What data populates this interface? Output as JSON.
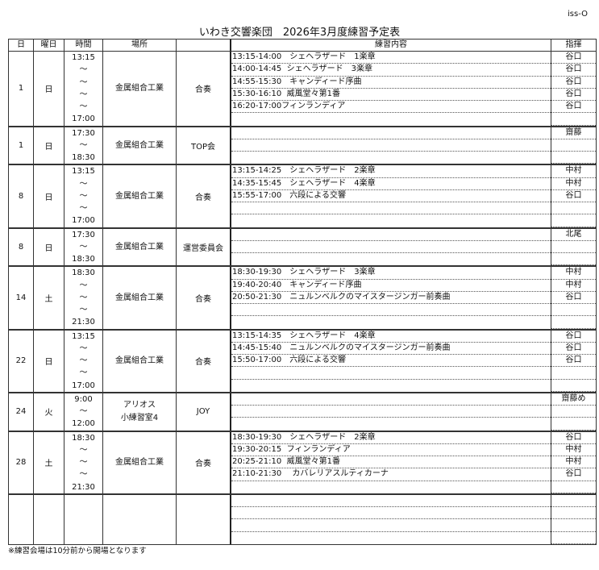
{
  "code": "iss-O",
  "title": "いわき交響楽団　2026年3月度練習予定表",
  "headers": [
    "日",
    "曜日",
    "時間",
    "場所",
    "",
    "練習内容",
    "指揮"
  ],
  "blocks": [
    {
      "day": "1",
      "weekday": "日",
      "times": [
        "13:15",
        "～",
        "～",
        "～",
        "～",
        "17:00"
      ],
      "place": [
        "金属組合工業"
      ],
      "type": "合奏",
      "rows": [
        {
          "text": "13:15-14:00　シェヘラザード　1楽章",
          "cond": "谷口"
        },
        {
          "text": "14:00-14:45  シェヘラザード　3楽章",
          "cond": "谷口"
        },
        {
          "text": "14:55-15:30　キャンディード序曲",
          "cond": "谷口"
        },
        {
          "text": "15:30-16:10  威風堂々第1番",
          "cond": "谷口"
        },
        {
          "text": "16:20-17:00フィンランディア",
          "cond": "谷口"
        },
        {
          "text": "",
          "cond": ""
        }
      ]
    },
    {
      "day": "1",
      "weekday": "日",
      "times": [
        "17:30",
        "～",
        "18:30"
      ],
      "place": [
        "金属組合工業"
      ],
      "type": "TOP会",
      "rows": [
        {
          "text": "",
          "cond": "齋藤"
        },
        {
          "text": "",
          "cond": ""
        },
        {
          "text": "",
          "cond": ""
        }
      ]
    },
    {
      "day": "8",
      "weekday": "日",
      "times": [
        "13:15",
        "～",
        "～",
        "～",
        "17:00"
      ],
      "place": [
        "金属組合工業"
      ],
      "type": "合奏",
      "rows": [
        {
          "text": "13:15-14:25　シェヘラザード　2楽章",
          "cond": "中村"
        },
        {
          "text": "14:35-15:45　シェヘラザード　4楽章",
          "cond": "中村"
        },
        {
          "text": "15:55-17:00　六段による交響",
          "cond": "谷口"
        },
        {
          "text": "",
          "cond": ""
        },
        {
          "text": "",
          "cond": ""
        }
      ]
    },
    {
      "day": "8",
      "weekday": "日",
      "times": [
        "17:30",
        "～",
        "18:30"
      ],
      "place": [
        "金属組合工業"
      ],
      "type": "運営委員会",
      "rows": [
        {
          "text": "",
          "cond": "北尾"
        },
        {
          "text": "",
          "cond": ""
        },
        {
          "text": "",
          "cond": ""
        }
      ]
    },
    {
      "day": "14",
      "weekday": "土",
      "times": [
        "18:30",
        "～",
        "～",
        "～",
        "21:30"
      ],
      "place": [
        "金属組合工業"
      ],
      "type": "合奏",
      "rows": [
        {
          "text": "18:30-19:30　シェヘラザード　3楽章",
          "cond": "中村"
        },
        {
          "text": "19:40-20:40　キャンディード序曲",
          "cond": "中村"
        },
        {
          "text": "20:50-21:30　ニュルンベルクのマイスタージンガー前奏曲",
          "cond": "谷口"
        },
        {
          "text": "",
          "cond": ""
        },
        {
          "text": "",
          "cond": ""
        }
      ]
    },
    {
      "day": "22",
      "weekday": "日",
      "times": [
        "13:15",
        "～",
        "～",
        "～",
        "17:00"
      ],
      "place": [
        "金属組合工業"
      ],
      "type": "合奏",
      "rows": [
        {
          "text": "13:15-14:35　シェヘラザード　4楽章",
          "cond": "谷口"
        },
        {
          "text": "14:45-15:40　ニュルンベルクのマイスタージンガー前奏曲",
          "cond": "谷口"
        },
        {
          "text": "15:50-17:00　六段による交響",
          "cond": "谷口"
        },
        {
          "text": "",
          "cond": ""
        },
        {
          "text": "",
          "cond": ""
        }
      ]
    },
    {
      "day": "24",
      "weekday": "火",
      "times": [
        "9:00",
        "～",
        "12:00"
      ],
      "place": [
        "アリオス",
        "小練習室4"
      ],
      "type": "JOY",
      "rows": [
        {
          "text": "",
          "cond": "齋藤め"
        },
        {
          "text": "",
          "cond": ""
        },
        {
          "text": "",
          "cond": ""
        }
      ]
    },
    {
      "day": "28",
      "weekday": "土",
      "times": [
        "18:30",
        "～",
        "～",
        "～",
        "21:30"
      ],
      "place": [
        "金属組合工業"
      ],
      "type": "合奏",
      "rows": [
        {
          "text": "18:30-19:30　シェヘラザード　2楽章",
          "cond": "谷口"
        },
        {
          "text": "19:30-20:15  フィンランディア",
          "cond": "中村"
        },
        {
          "text": "20:25-21:10  威風堂々第1番",
          "cond": "中村"
        },
        {
          "text": "21:10-21:30　 カバレリアスルティカーナ",
          "cond": "谷口"
        },
        {
          "text": "",
          "cond": ""
        }
      ]
    },
    {
      "day": "",
      "weekday": "",
      "times": [],
      "place": [],
      "type": "",
      "rows": [
        {
          "text": "",
          "cond": ""
        },
        {
          "text": "",
          "cond": ""
        },
        {
          "text": "",
          "cond": ""
        },
        {
          "text": "",
          "cond": ""
        }
      ]
    }
  ],
  "note": "※練習会場は10分前から開場となります"
}
